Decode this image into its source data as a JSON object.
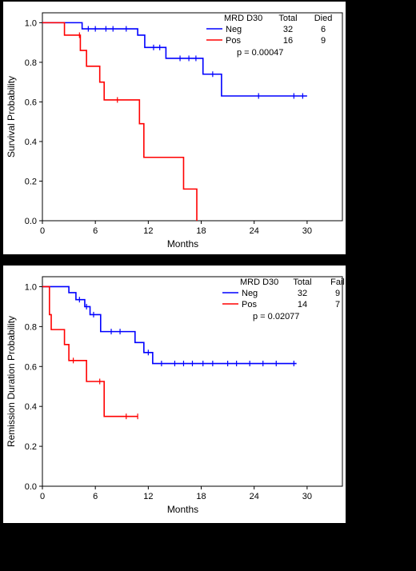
{
  "chart_data": [
    {
      "type": "line",
      "subtype": "kaplan-meier",
      "xlabel": "Months",
      "ylabel": "Survival Probability",
      "xlim": [
        0,
        34
      ],
      "ylim": [
        0,
        1.05
      ],
      "xticks": [
        "0",
        "6",
        "12",
        "18",
        "24",
        "30"
      ],
      "yticks": [
        "0.0",
        "0.2",
        "0.4",
        "0.6",
        "0.8",
        "1.0"
      ],
      "grid": false,
      "legend_position": "top-right",
      "legend": {
        "header": [
          "MRD D30",
          "Total",
          "Died"
        ],
        "rows": [
          {
            "name": "Neg",
            "total": "32",
            "events": "6"
          },
          {
            "name": "Pos",
            "total": "16",
            "events": "9"
          }
        ],
        "pvalue": "p = 0.00047"
      },
      "series": [
        {
          "name": "Neg",
          "color": "#0000ff",
          "steps": [
            [
              0,
              1.0
            ],
            [
              4.5,
              0.969
            ],
            [
              10.8,
              0.937
            ],
            [
              11.6,
              0.875
            ],
            [
              14,
              0.82
            ],
            [
              18.2,
              0.74
            ],
            [
              20.3,
              0.63
            ],
            [
              30,
              0.63
            ]
          ],
          "censored": [
            [
              5.2,
              0.969
            ],
            [
              6,
              0.969
            ],
            [
              7.2,
              0.969
            ],
            [
              8,
              0.969
            ],
            [
              9.5,
              0.969
            ],
            [
              12.6,
              0.875
            ],
            [
              13.3,
              0.875
            ],
            [
              15.6,
              0.82
            ],
            [
              16.6,
              0.82
            ],
            [
              17.4,
              0.82
            ],
            [
              19.3,
              0.74
            ],
            [
              24.5,
              0.63
            ],
            [
              28.5,
              0.63
            ],
            [
              29.5,
              0.63
            ]
          ]
        },
        {
          "name": "Pos",
          "color": "#ff0000",
          "steps": [
            [
              0,
              1.0
            ],
            [
              2.5,
              0.937
            ],
            [
              4.3,
              0.86
            ],
            [
              5,
              0.78
            ],
            [
              6.5,
              0.7
            ],
            [
              7,
              0.61
            ],
            [
              11,
              0.49
            ],
            [
              11.5,
              0.32
            ],
            [
              16,
              0.16
            ],
            [
              17.5,
              0.0
            ]
          ],
          "censored": [
            [
              4.2,
              0.937
            ],
            [
              8.5,
              0.61
            ]
          ]
        }
      ]
    },
    {
      "type": "line",
      "subtype": "kaplan-meier",
      "xlabel": "Months",
      "ylabel": "Remission Duration Probability",
      "xlim": [
        0,
        34
      ],
      "ylim": [
        0,
        1.05
      ],
      "xticks": [
        "0",
        "6",
        "12",
        "18",
        "24",
        "30"
      ],
      "yticks": [
        "0.0",
        "0.2",
        "0.4",
        "0.6",
        "0.8",
        "1.0"
      ],
      "grid": false,
      "legend_position": "top-right",
      "legend": {
        "header": [
          "MRD D30",
          "Total",
          "Fail"
        ],
        "rows": [
          {
            "name": "Neg",
            "total": "32",
            "events": "9"
          },
          {
            "name": "Pos",
            "total": "14",
            "events": "7"
          }
        ],
        "pvalue": "p = 0.02077"
      },
      "series": [
        {
          "name": "Neg",
          "color": "#0000ff",
          "steps": [
            [
              0,
              1.0
            ],
            [
              3,
              0.97
            ],
            [
              3.8,
              0.935
            ],
            [
              4.8,
              0.9
            ],
            [
              5.4,
              0.86
            ],
            [
              6.6,
              0.775
            ],
            [
              10.5,
              0.72
            ],
            [
              11.5,
              0.67
            ],
            [
              12.5,
              0.615
            ],
            [
              28.8,
              0.615
            ]
          ],
          "censored": [
            [
              4.2,
              0.935
            ],
            [
              5.0,
              0.9
            ],
            [
              5.8,
              0.86
            ],
            [
              7.8,
              0.775
            ],
            [
              8.8,
              0.775
            ],
            [
              12,
              0.67
            ],
            [
              13.5,
              0.615
            ],
            [
              15,
              0.615
            ],
            [
              16,
              0.615
            ],
            [
              17,
              0.615
            ],
            [
              18.2,
              0.615
            ],
            [
              19.3,
              0.615
            ],
            [
              21,
              0.615
            ],
            [
              22,
              0.615
            ],
            [
              23.5,
              0.615
            ],
            [
              25,
              0.615
            ],
            [
              26.5,
              0.615
            ],
            [
              28.5,
              0.615
            ]
          ]
        },
        {
          "name": "Pos",
          "color": "#ff0000",
          "steps": [
            [
              0,
              1.0
            ],
            [
              0.8,
              0.86
            ],
            [
              1,
              0.785
            ],
            [
              2.5,
              0.71
            ],
            [
              3,
              0.63
            ],
            [
              5,
              0.525
            ],
            [
              7,
              0.35
            ],
            [
              10.8,
              0.35
            ]
          ],
          "censored": [
            [
              3.5,
              0.63
            ],
            [
              6.5,
              0.525
            ],
            [
              9.5,
              0.35
            ],
            [
              10.8,
              0.35
            ]
          ]
        }
      ]
    }
  ]
}
